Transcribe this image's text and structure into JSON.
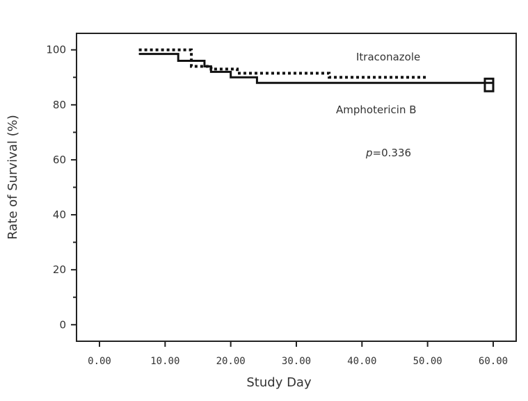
{
  "chart_data": {
    "type": "line",
    "title": "",
    "xlabel": "Study Day",
    "ylabel": "Rate of Survival (%)",
    "xlim": [
      -3.5,
      63.5
    ],
    "ylim": [
      -6,
      106
    ],
    "x_ticks": [
      0,
      10,
      20,
      30,
      40,
      50,
      60
    ],
    "x_tick_labels": [
      "0.00",
      "10.00",
      "20.00",
      "30.00",
      "40.00",
      "50.00",
      "60.00"
    ],
    "y_ticks": [
      0,
      20,
      40,
      60,
      80,
      100
    ],
    "y_tick_labels": [
      "0",
      "20",
      "40",
      "60",
      "80",
      "100"
    ],
    "grid": false,
    "series": [
      {
        "name": "Itraconazole",
        "style": "dotted",
        "color": "#111111",
        "x": [
          6,
          10,
          14,
          17,
          21,
          35,
          50
        ],
        "y": [
          100,
          100,
          94,
          93,
          91.5,
          90,
          90
        ]
      },
      {
        "name": "Amphotericin B",
        "style": "solid",
        "color": "#111111",
        "x": [
          6,
          12,
          16,
          17,
          20,
          24,
          60
        ],
        "y": [
          98.5,
          96,
          94,
          92,
          90,
          88,
          88
        ]
      }
    ],
    "annotations": [
      {
        "text": "Itraconazole"
      },
      {
        "text": "Amphotericin B"
      },
      {
        "italic": "p",
        "text": "=0.336"
      }
    ]
  }
}
